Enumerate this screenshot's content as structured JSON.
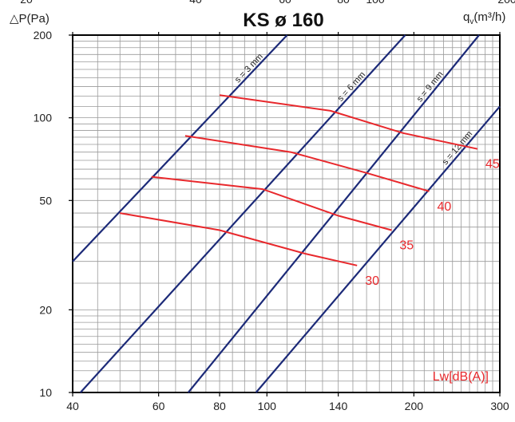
{
  "chart_data": {
    "type": "line",
    "title": "KS ø 160",
    "ylabel": "△P(Pa)",
    "xlabel": "qv(m³/h)",
    "xlabel_main": "q",
    "xlabel_sub": "v",
    "xlabel_unit": "(m³/h)",
    "x_scale": "log",
    "y_scale": "log",
    "xlim": [
      40,
      300
    ],
    "ylim": [
      10,
      200
    ],
    "grid": true,
    "x_ticks": [
      40,
      60,
      80,
      100,
      140,
      200,
      300
    ],
    "x_tick_labels": [
      "40",
      "60",
      "80",
      "100",
      "140",
      "200",
      "300"
    ],
    "y_ticks": [
      10,
      20,
      50,
      100,
      200
    ],
    "y_tick_labels": [
      "10",
      "20",
      "50",
      "100",
      "200"
    ],
    "top_tick_labels_partial": [
      "20",
      "40",
      "60",
      "80",
      "100",
      "200"
    ],
    "colors": {
      "s_lines": "#1c2a78",
      "lw_lines": "#e8282c",
      "grid": "#9a9a9a",
      "frame": "#000000"
    },
    "s_series": [
      {
        "name": "s = 3 mm",
        "points": [
          [
            40,
            30
          ],
          [
            110,
            200
          ]
        ]
      },
      {
        "name": "s = 6 mm",
        "points": [
          [
            41.5,
            10
          ],
          [
            192,
            200
          ]
        ]
      },
      {
        "name": "s = 9 mm",
        "points": [
          [
            69,
            10
          ],
          [
            272,
            200
          ]
        ]
      },
      {
        "name": "s = 12 mm",
        "points": [
          [
            95,
            10
          ],
          [
            300,
            110
          ]
        ]
      }
    ],
    "lw_series": [
      {
        "name": "30",
        "points": [
          [
            50,
            45
          ],
          [
            80,
            39
          ],
          [
            120,
            32
          ],
          [
            153,
            29
          ]
        ]
      },
      {
        "name": "35",
        "points": [
          [
            58,
            61
          ],
          [
            98,
            55
          ],
          [
            140,
            44
          ],
          [
            180,
            39
          ]
        ]
      },
      {
        "name": "40",
        "points": [
          [
            68,
            86
          ],
          [
            112,
            75
          ],
          [
            160,
            63
          ],
          [
            215,
            54
          ]
        ]
      },
      {
        "name": "45",
        "points": [
          [
            80,
            121
          ],
          [
            135,
            106
          ],
          [
            190,
            88
          ],
          [
            270,
            77
          ]
        ]
      }
    ],
    "legend_label": "Lw[dB(A)]"
  }
}
